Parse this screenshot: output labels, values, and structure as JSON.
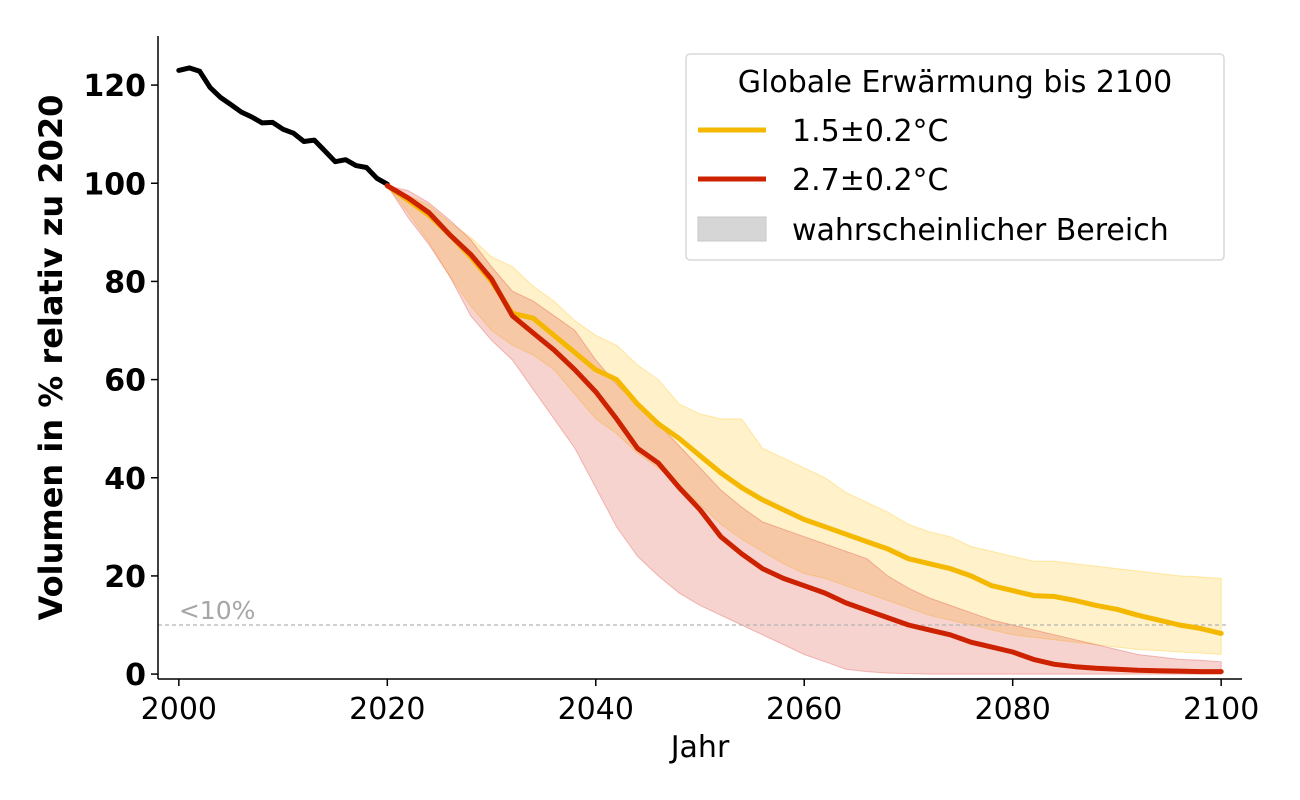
{
  "chart_data": {
    "type": "line",
    "xlabel": "Jahr",
    "ylabel": "Volumen in % relativ zu 2020",
    "xlim": [
      1998,
      2102
    ],
    "ylim": [
      -1,
      130
    ],
    "xticks": [
      2000,
      2020,
      2040,
      2060,
      2080,
      2100
    ],
    "yticks": [
      0,
      20,
      40,
      60,
      80,
      100,
      120
    ],
    "x_tick_labels": [
      "2000",
      "2020",
      "2040",
      "2060",
      "2080",
      "2100"
    ],
    "y_tick_labels": [
      "0",
      "20",
      "40",
      "60",
      "80",
      "100",
      "120"
    ],
    "grid": false,
    "legend": {
      "title": "Globale Erwärmung bis 2100",
      "placement": "top-right",
      "entries": [
        "1.5±0.2°C",
        "2.7±0.2°C",
        "wahrscheinlicher Bereich"
      ]
    },
    "threshold": {
      "y": 10,
      "label": "<10%",
      "color": "#b3b3b3"
    },
    "colors": {
      "historical": "#000000",
      "low": "#f5b800",
      "high": "#cc2200",
      "range_legend": "#d6d6d6",
      "low_band": "#ffc107",
      "high_band": "#d9362b"
    },
    "historical": {
      "x": [
        2000,
        2001,
        2002,
        2003,
        2004,
        2005,
        2006,
        2007,
        2008,
        2009,
        2010,
        2011,
        2012,
        2013,
        2014,
        2015,
        2016,
        2017,
        2018,
        2019,
        2020
      ],
      "y": [
        123,
        123.5,
        122.8,
        119.5,
        117.5,
        116,
        114.5,
        113.5,
        112.3,
        112.4,
        111,
        110.2,
        108.5,
        108.8,
        106.6,
        104.4,
        104.8,
        103.6,
        103.2,
        101,
        99.8
      ]
    },
    "series": [
      {
        "name": "1.5±0.2°C",
        "x": [
          2020,
          2022,
          2024,
          2026,
          2028,
          2030,
          2032,
          2034,
          2036,
          2038,
          2040,
          2042,
          2044,
          2046,
          2048,
          2050,
          2052,
          2054,
          2056,
          2058,
          2060,
          2062,
          2064,
          2066,
          2068,
          2070,
          2072,
          2074,
          2076,
          2078,
          2080,
          2082,
          2084,
          2086,
          2088,
          2090,
          2092,
          2094,
          2096,
          2098,
          2100
        ],
        "y": [
          99.5,
          96.5,
          93.5,
          89.5,
          85,
          80,
          73.5,
          72.5,
          69,
          65.5,
          62,
          60,
          55,
          51,
          48,
          44.5,
          41,
          38,
          35.5,
          33.5,
          31.5,
          30,
          28.5,
          27,
          25.5,
          23.5,
          22.5,
          21.5,
          20,
          18,
          17,
          16,
          15.8,
          15,
          14,
          13.2,
          12,
          11,
          10,
          9.3,
          8.3
        ],
        "lower": [
          99.5,
          94,
          88,
          81,
          75,
          70,
          67,
          65,
          62,
          57,
          52,
          49,
          45,
          42,
          38.5,
          34.5,
          30.5,
          27.5,
          25,
          22.5,
          20.5,
          19.5,
          18,
          16.5,
          15,
          13.5,
          12,
          11,
          10,
          9,
          8,
          7.5,
          7,
          6.5,
          6,
          5.5,
          5,
          4.8,
          4.5,
          4.3,
          4
        ],
        "upper": [
          99.5,
          97.5,
          95.5,
          92,
          89,
          85,
          83,
          79,
          76,
          72,
          69,
          67,
          63,
          60,
          55,
          53,
          52,
          52,
          46,
          44,
          42,
          40,
          37,
          35,
          33,
          30.5,
          29,
          28,
          26,
          25,
          24,
          23,
          23,
          22.5,
          22,
          21.5,
          21,
          20.5,
          20,
          19.8,
          19.5
        ]
      },
      {
        "name": "2.7±0.2°C",
        "x": [
          2020,
          2022,
          2024,
          2026,
          2028,
          2030,
          2032,
          2034,
          2036,
          2038,
          2040,
          2042,
          2044,
          2046,
          2048,
          2050,
          2052,
          2054,
          2056,
          2058,
          2060,
          2062,
          2064,
          2066,
          2068,
          2070,
          2072,
          2074,
          2076,
          2078,
          2080,
          2082,
          2084,
          2086,
          2088,
          2090,
          2092,
          2094,
          2096,
          2098,
          2100
        ],
        "y": [
          99.5,
          97,
          94,
          89.5,
          85.5,
          80.5,
          73,
          69.5,
          66,
          62,
          57.5,
          52,
          46,
          43,
          38,
          33.5,
          28,
          24.5,
          21.5,
          19.5,
          18,
          16.5,
          14.5,
          13,
          11.5,
          10,
          9,
          8,
          6.5,
          5.5,
          4.5,
          3,
          2,
          1.5,
          1.2,
          1,
          0.8,
          0.7,
          0.6,
          0.5,
          0.5
        ],
        "lower": [
          99.5,
          93,
          87.5,
          81,
          73,
          68,
          64,
          58,
          52,
          46,
          38,
          30,
          24,
          20,
          16.5,
          14,
          12,
          10,
          8,
          6,
          4,
          2.5,
          1,
          0.5,
          0.2,
          0.1,
          0,
          0,
          0,
          0,
          0,
          0,
          0,
          0,
          0,
          0,
          0,
          0,
          0,
          0,
          0
        ],
        "upper": [
          99.5,
          98.5,
          96,
          92.5,
          88.5,
          83,
          78,
          76,
          73,
          70,
          64,
          59,
          55,
          51,
          46.5,
          42,
          37.5,
          34,
          31,
          29.5,
          28,
          26.5,
          25,
          23.5,
          20,
          17.5,
          15.5,
          14,
          12.5,
          11,
          10,
          9,
          8,
          7,
          6,
          5,
          4,
          3.5,
          3,
          2.8,
          2.5
        ]
      }
    ]
  }
}
